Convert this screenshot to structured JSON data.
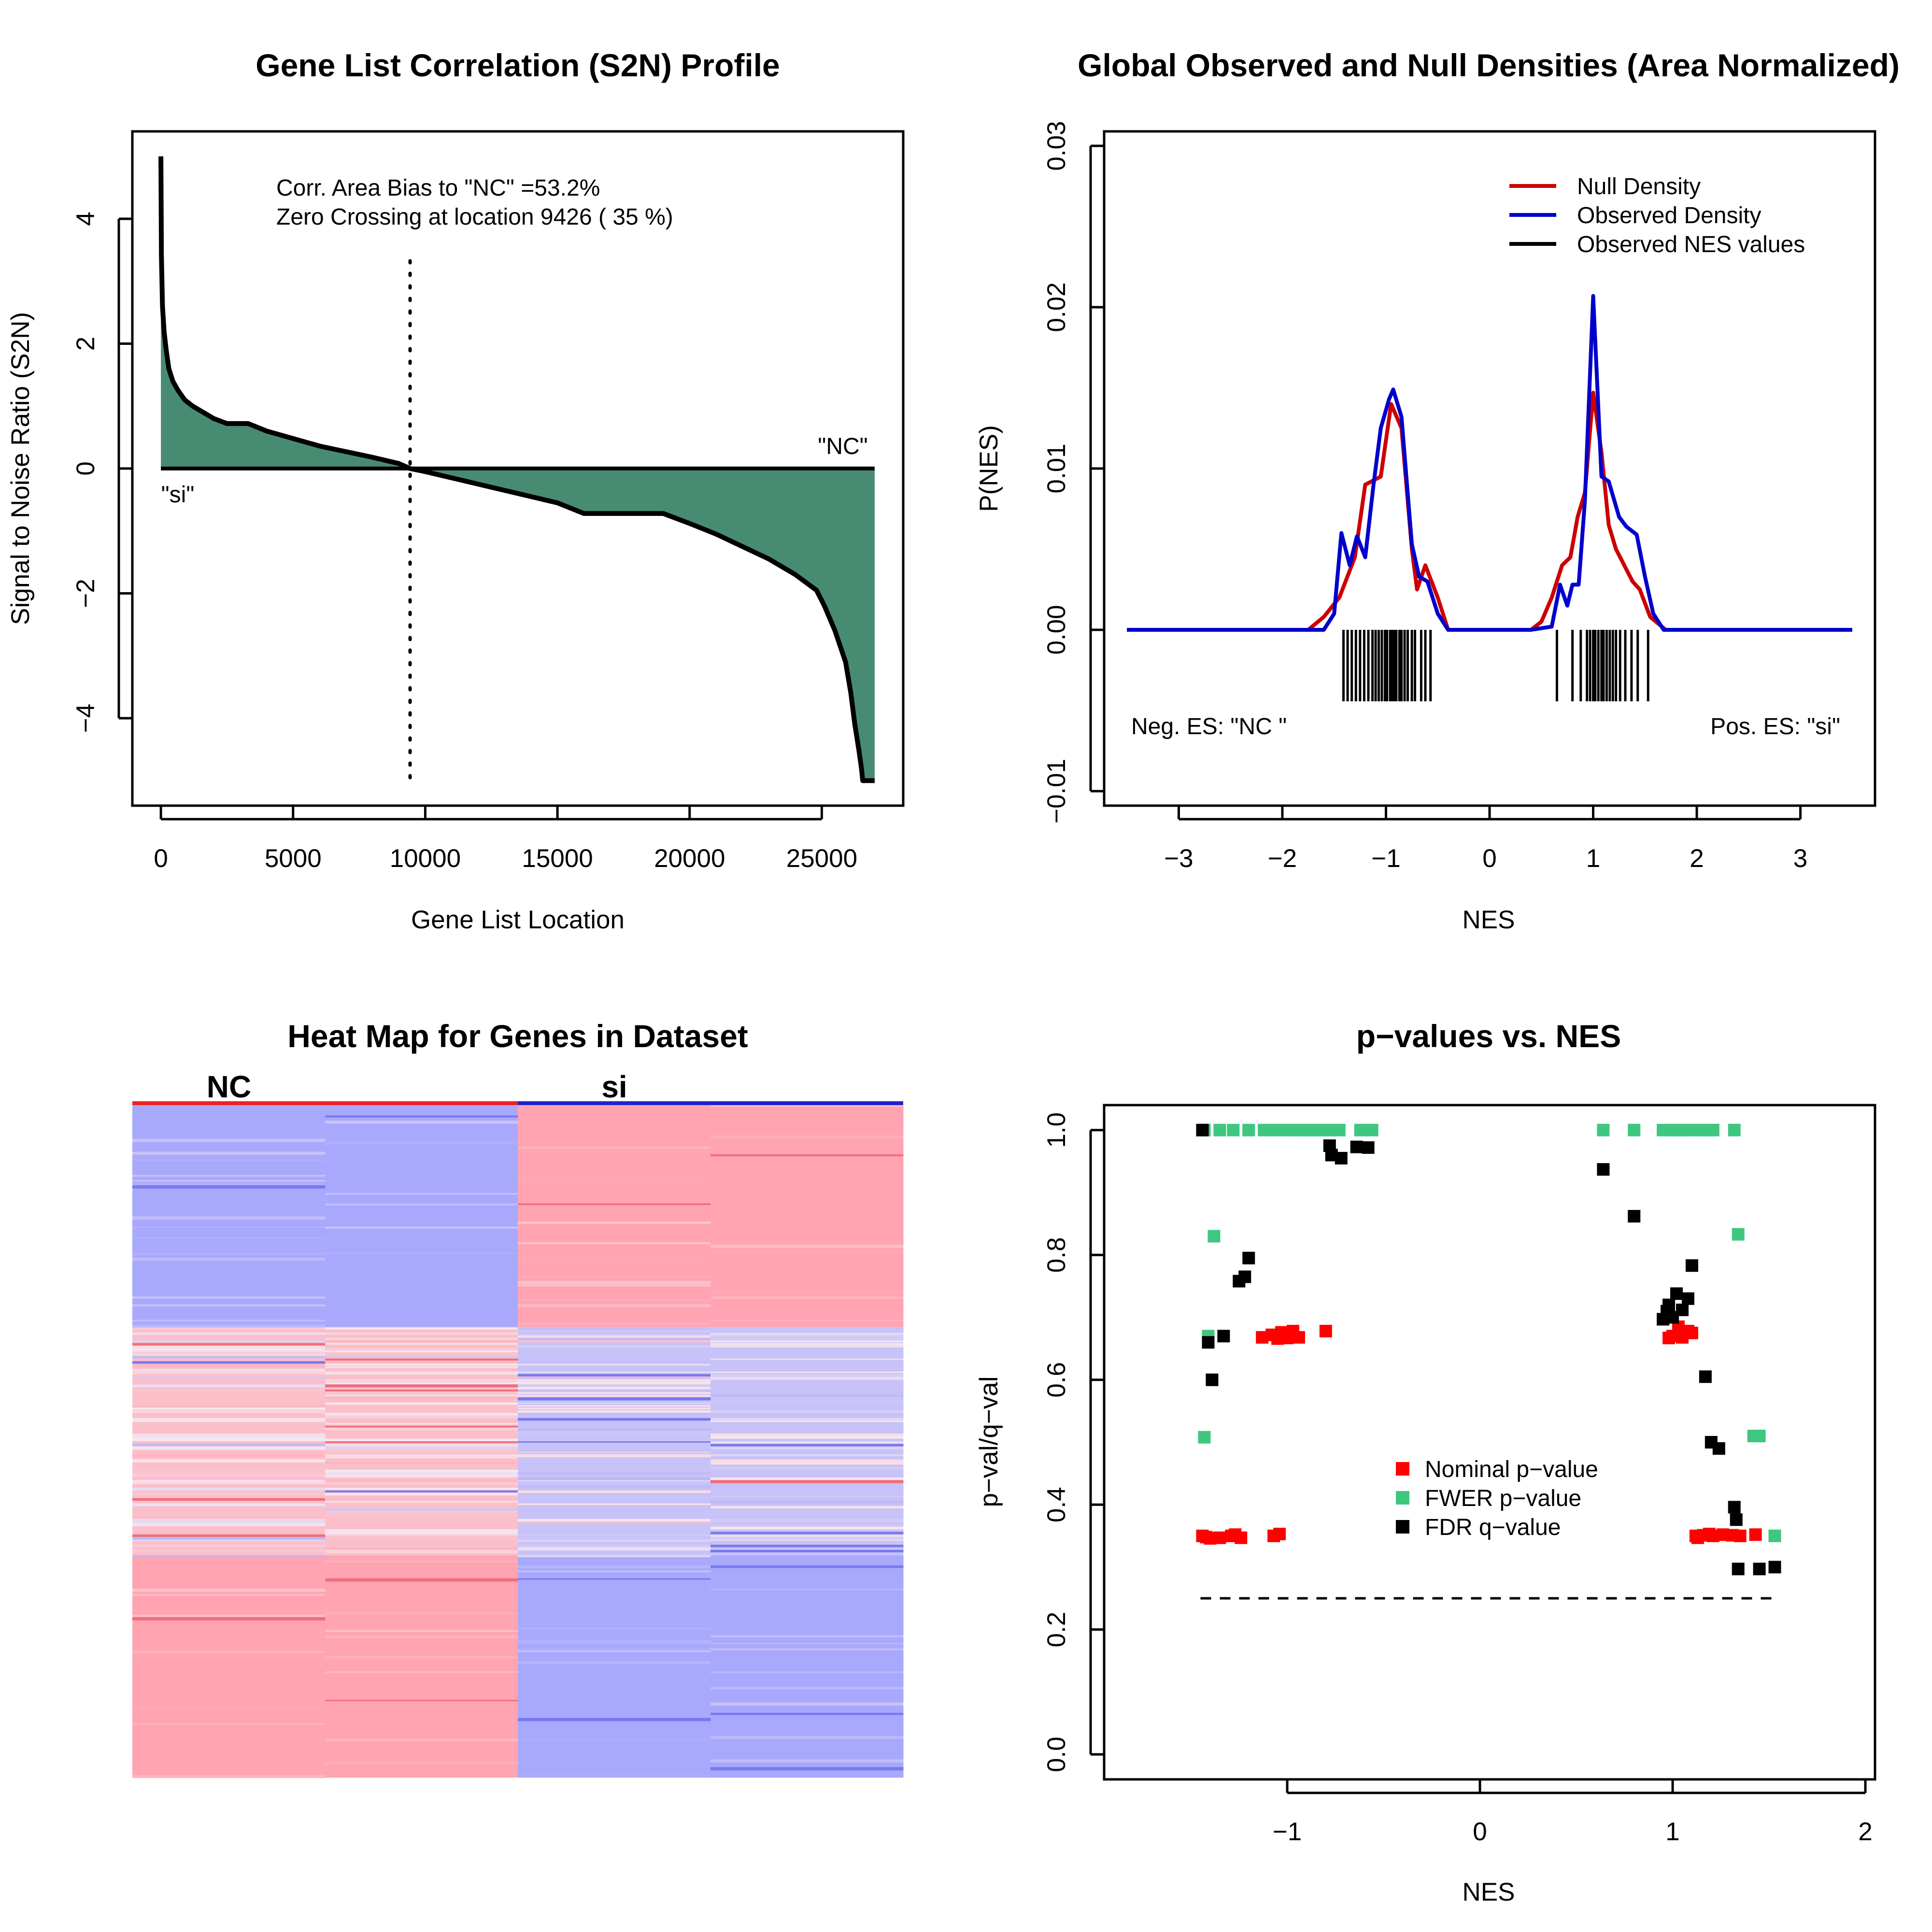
{
  "colors": {
    "area_fill": "#478c72",
    "null_density": "#cc0000",
    "observed_density": "#0000cc",
    "observed_nes": "#000000",
    "nominal": "#ff0000",
    "fwer": "#3fc77f",
    "fdr": "#000000",
    "heat_high": "#ffa4b0",
    "heat_low": "#a8a8fc",
    "phenotype_nc": "#ee2222",
    "phenotype_si": "#2222cc"
  },
  "panels": {
    "s2n": {
      "title": "Gene List Correlation (S2N) Profile",
      "xlabel": "Gene List Location",
      "ylabel": "Signal to Noise Ratio (S2N)",
      "xticks": [
        "0",
        "5000",
        "10000",
        "15000",
        "20000",
        "25000"
      ],
      "yticks": [
        "−4",
        "−2",
        "0",
        "2",
        "4"
      ],
      "annotation_line1": "Corr. Area Bias to \"NC\" =53.2%",
      "annotation_line2": "Zero Crossing at location  9426  ( 35  %)",
      "label_pos": "\"NC\"",
      "label_neg": "\"si\""
    },
    "density": {
      "title": "Global Observed and Null Densities (Area Normalized)",
      "xlabel": "NES",
      "ylabel": "P(NES)",
      "xticks": [
        "−3",
        "−2",
        "−1",
        "0",
        "1",
        "2",
        "3"
      ],
      "yticks": [
        "−0.01",
        "0.00",
        "0.01",
        "0.02",
        "0.03"
      ],
      "legend": [
        "Null Density",
        "Observed Density",
        "Observed NES values"
      ],
      "neg_label": "Neg. ES: \"NC \"",
      "pos_label": "Pos. ES: \"si\""
    },
    "heatmap": {
      "title": "Heat Map for Genes in Dataset",
      "group_left": "NC",
      "group_right": "si"
    },
    "pvalues": {
      "title": "p−values vs. NES",
      "xlabel": "NES",
      "ylabel": "p−val/q−val",
      "xticks": [
        "−1",
        "0",
        "1",
        "2"
      ],
      "yticks": [
        "0.0",
        "0.2",
        "0.4",
        "0.6",
        "0.8",
        "1.0"
      ],
      "legend": [
        "Nominal p−value",
        "FWER p−value",
        "FDR q−value"
      ]
    }
  },
  "chart_data": [
    {
      "type": "area",
      "title": "Gene List Correlation (S2N) Profile",
      "xlabel": "Gene List Location",
      "ylabel": "Signal to Noise Ratio (S2N)",
      "xlim": [
        -1080,
        28080
      ],
      "ylim": [
        -5.4,
        5.4
      ],
      "zero_crossing": 9426,
      "x": [
        0,
        20,
        60,
        120,
        200,
        300,
        450,
        650,
        900,
        1200,
        1600,
        2000,
        2500,
        3300,
        4000,
        5000,
        6000,
        7000,
        8000,
        9000,
        9426,
        10000,
        11000,
        12000,
        13000,
        14000,
        15000,
        16000,
        17000,
        18000,
        19000,
        20000,
        21000,
        22000,
        23000,
        24000,
        24800,
        25100,
        25500,
        25900,
        26100,
        26250,
        26400,
        26500,
        26550,
        26600,
        27000
      ],
      "y": [
        5.0,
        3.4,
        2.6,
        2.2,
        1.9,
        1.6,
        1.4,
        1.25,
        1.1,
        1.0,
        0.9,
        0.8,
        0.72,
        0.72,
        0.6,
        0.48,
        0.36,
        0.27,
        0.18,
        0.08,
        0.0,
        -0.05,
        -0.15,
        -0.25,
        -0.35,
        -0.45,
        -0.55,
        -0.72,
        -0.72,
        -0.72,
        -0.72,
        -0.88,
        -1.05,
        -1.25,
        -1.45,
        -1.7,
        -1.95,
        -2.2,
        -2.6,
        -3.1,
        -3.6,
        -4.1,
        -4.5,
        -4.8,
        -5.0,
        -5.0,
        -5.0
      ]
    },
    {
      "type": "line",
      "title": "Global Observed and Null Densities (Area Normalized)",
      "xlabel": "NES",
      "ylabel": "P(NES)",
      "xlim": [
        -3.5,
        3.5
      ],
      "ylim": [
        -0.01,
        0.03
      ],
      "series": [
        {
          "name": "Null Density",
          "x": [
            -3.5,
            -1.75,
            -1.6,
            -1.45,
            -1.3,
            -1.2,
            -1.05,
            -0.95,
            -0.85,
            -0.75,
            -0.7,
            -0.62,
            -0.5,
            -0.4,
            0.4,
            0.5,
            0.6,
            0.7,
            0.78,
            0.85,
            0.92,
            1.0,
            1.08,
            1.15,
            1.22,
            1.3,
            1.38,
            1.45,
            1.55,
            1.7,
            3.5
          ],
          "y": [
            0,
            0,
            0.0008,
            0.002,
            0.0045,
            0.009,
            0.0095,
            0.014,
            0.0125,
            0.005,
            0.0025,
            0.004,
            0.002,
            0,
            0,
            0.0005,
            0.002,
            0.004,
            0.0045,
            0.007,
            0.0085,
            0.0147,
            0.011,
            0.0065,
            0.005,
            0.004,
            0.003,
            0.0025,
            0.0008,
            0,
            0
          ]
        },
        {
          "name": "Observed Density",
          "x": [
            -3.5,
            -1.6,
            -1.5,
            -1.43,
            -1.35,
            -1.28,
            -1.2,
            -1.12,
            -1.05,
            -0.97,
            -0.93,
            -0.85,
            -0.75,
            -0.68,
            -0.6,
            -0.5,
            -0.4,
            0.4,
            0.6,
            0.68,
            0.75,
            0.8,
            0.86,
            0.92,
            1.0,
            1.08,
            1.15,
            1.25,
            1.32,
            1.42,
            1.5,
            1.58,
            1.68,
            3.5
          ],
          "y": [
            0,
            0,
            0.001,
            0.006,
            0.004,
            0.0058,
            0.0045,
            0.009,
            0.0125,
            0.0143,
            0.0149,
            0.0132,
            0.0053,
            0.0033,
            0.003,
            0.001,
            0,
            0,
            0.0002,
            0.0028,
            0.0015,
            0.0028,
            0.0028,
            0.008,
            0.0207,
            0.0095,
            0.0092,
            0.007,
            0.0064,
            0.0059,
            0.0033,
            0.001,
            0,
            0
          ]
        }
      ],
      "rug": {
        "name": "Observed NES values",
        "values": [
          -1.41,
          -1.37,
          -1.33,
          -1.29,
          -1.25,
          -1.21,
          -1.17,
          -1.13,
          -1.1,
          -1.07,
          -1.04,
          -1.01,
          -0.99,
          -0.96,
          -0.94,
          -0.92,
          -0.9,
          -0.87,
          -0.85,
          -0.82,
          -0.79,
          -0.75,
          -0.72,
          -0.66,
          -0.62,
          -0.57,
          0.65,
          0.8,
          0.88,
          0.94,
          0.97,
          1.0,
          1.02,
          1.05,
          1.08,
          1.1,
          1.13,
          1.16,
          1.19,
          1.22,
          1.26,
          1.31,
          1.37,
          1.43,
          1.53
        ]
      }
    },
    {
      "type": "heatmap",
      "title": "Heat Map for Genes in Dataset",
      "columns": [
        "NC",
        "NC",
        "si",
        "si"
      ],
      "blocks": [
        {
          "from": 0.0,
          "to": 0.33,
          "values": [
            -1,
            -1,
            1,
            1
          ]
        },
        {
          "from": 0.33,
          "to": 0.67,
          "values": [
            0.6,
            0.6,
            -0.6,
            -0.6
          ]
        },
        {
          "from": 0.67,
          "to": 1.0,
          "values": [
            1,
            1,
            -1,
            -1
          ]
        }
      ]
    },
    {
      "type": "scatter",
      "title": "p−values vs. NES",
      "xlabel": "NES",
      "ylabel": "p−val/q−val",
      "xlim": [
        -1.95,
        2.05
      ],
      "ylim": [
        -0.04,
        1.04
      ],
      "threshold": {
        "y": 0.25,
        "x_from": -1.45,
        "x_to": 1.55
      },
      "series": [
        {
          "name": "Nominal p−value",
          "x": [
            -1.44,
            -1.42,
            -1.4,
            -1.35,
            -1.29,
            -1.27,
            -1.24,
            -1.07,
            -1.04,
            -1.13,
            -1.08,
            -1.05,
            -1.03,
            -1.0,
            -0.97,
            -0.94,
            -0.8,
            0.98,
            1.0,
            1.03,
            1.05,
            1.08,
            1.1,
            1.12,
            1.13,
            1.16,
            1.19,
            1.21,
            1.26,
            1.31,
            1.35,
            1.43
          ],
          "y": [
            0.35,
            0.348,
            0.346,
            0.347,
            0.35,
            0.352,
            0.347,
            0.35,
            0.353,
            0.668,
            0.672,
            0.666,
            0.676,
            0.667,
            0.678,
            0.668,
            0.678,
            0.667,
            0.67,
            0.685,
            0.668,
            0.678,
            0.675,
            0.35,
            0.347,
            0.351,
            0.353,
            0.35,
            0.352,
            0.351,
            0.35,
            0.352
          ]
        },
        {
          "name": "FWER p−value",
          "x": [
            -1.43,
            -1.35,
            -1.28,
            -1.2,
            -1.12,
            -1.06,
            -1.0,
            -0.95,
            -0.9,
            -0.86,
            -0.82,
            -0.78,
            -0.73,
            -0.62,
            -0.56,
            -1.38,
            -1.41,
            -1.43,
            0.64,
            0.8,
            0.95,
            1.0,
            1.04,
            1.08,
            1.14,
            1.18,
            1.21,
            1.32,
            1.34,
            1.42,
            1.45,
            1.53
          ],
          "y": [
            1.0,
            1.0,
            1.0,
            1.0,
            1.0,
            1.0,
            1.0,
            1.0,
            1.0,
            1.0,
            1.0,
            1.0,
            1.0,
            1.0,
            1.0,
            0.83,
            0.67,
            0.508,
            1.0,
            1.0,
            1.0,
            1.0,
            1.0,
            1.0,
            1.0,
            1.0,
            1.0,
            1.0,
            0.833,
            0.51,
            0.51,
            0.35
          ]
        },
        {
          "name": "FDR q−value",
          "x": [
            -1.44,
            -1.41,
            -1.39,
            -1.33,
            -1.25,
            -1.22,
            -1.2,
            -0.78,
            -0.77,
            -0.72,
            -0.64,
            -0.58,
            0.64,
            0.8,
            0.95,
            0.97,
            0.98,
            1.0,
            1.02,
            1.05,
            1.08,
            1.1,
            1.17,
            1.2,
            1.24,
            1.32,
            1.33,
            1.34,
            1.45,
            1.53
          ],
          "y": [
            1.0,
            0.66,
            0.6,
            0.67,
            0.758,
            0.765,
            0.795,
            0.975,
            0.96,
            0.955,
            0.973,
            0.972,
            0.937,
            0.862,
            0.697,
            0.71,
            0.72,
            0.7,
            0.738,
            0.712,
            0.73,
            0.783,
            0.605,
            0.5,
            0.49,
            0.396,
            0.376,
            0.297,
            0.297,
            0.3
          ]
        }
      ]
    }
  ]
}
